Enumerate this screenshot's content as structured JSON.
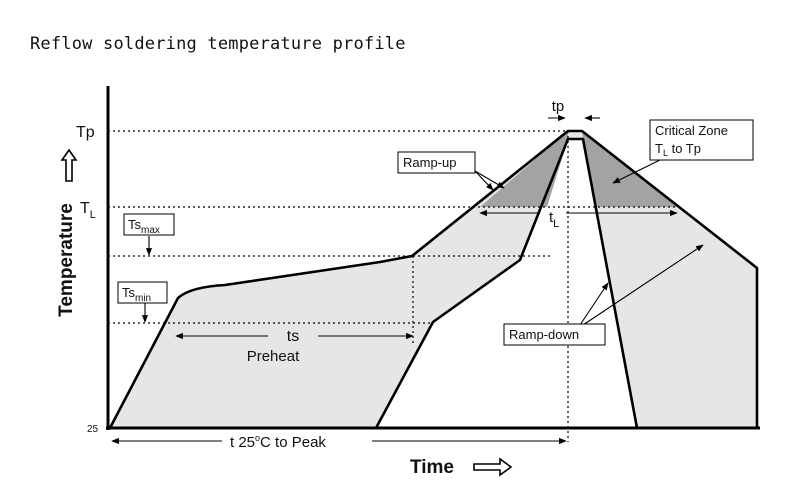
{
  "title": "Reflow soldering temperature profile",
  "y_axis": {
    "label": "Temperature",
    "origin": "25",
    "arrow_icon": "up-arrow-icon"
  },
  "x_axis": {
    "label": "Time",
    "arrow_icon": "right-arrow-icon"
  },
  "levels": {
    "tp": "Tp",
    "tl_main": "T",
    "tl_sub": "L"
  },
  "boxes": {
    "ts_max_main": "Ts",
    "ts_max_sub": "max",
    "ts_min_main": "Ts",
    "ts_min_sub": "min",
    "ramp_up": "Ramp-up",
    "ramp_down": "Ramp-down",
    "critical_line1": "Critical Zone",
    "critical_line2_pre": "T",
    "critical_line2_sub": "L",
    "critical_line2_post": " to Tp"
  },
  "spans": {
    "tp": "tp",
    "tl_main": "t",
    "tl_sub": "L",
    "ts": "ts",
    "preheat": "Preheat",
    "to_peak_pre": "t  25",
    "to_peak_sup": "o",
    "to_peak_post": "C to Peak"
  },
  "colors": {
    "fill": "#e6e6e6",
    "critical_fill": "#a3a3a3",
    "ink": "#000000"
  }
}
